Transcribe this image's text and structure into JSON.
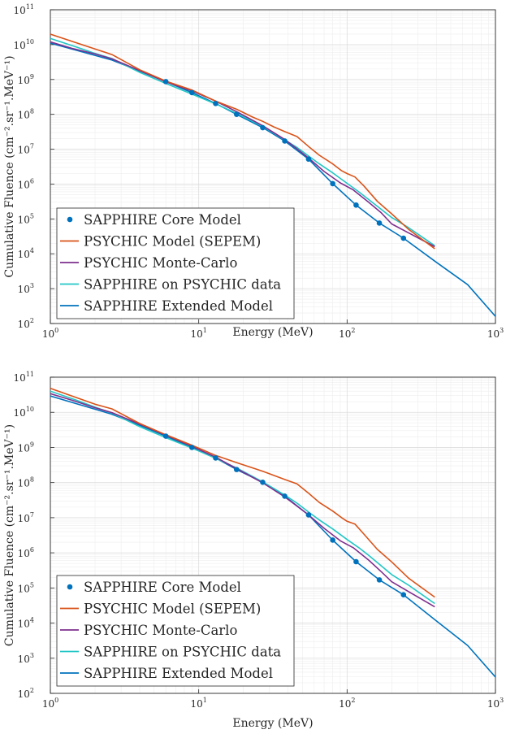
{
  "figure": {
    "colors": {
      "core": "#0072BD",
      "sepem": "#D95319",
      "montecarlo": "#7E2F8E",
      "psychicdata": "#22C6C6",
      "extended": "#0072BD",
      "grid": "#dddddd",
      "axis": "#262626"
    }
  },
  "chart_data": [
    {
      "type": "line",
      "panel": "top",
      "xscale": "log",
      "yscale": "log",
      "xlim": [
        1,
        1000
      ],
      "ylim": [
        100,
        100000000000
      ],
      "xlabel": "Energy (MeV)",
      "ylabel": "Cumulative Fluence (cm⁻².sr⁻¹.MeV⁻¹)",
      "xticks": [
        {
          "base": "10",
          "exp": "0",
          "v": 1
        },
        {
          "base": "10",
          "exp": "1",
          "v": 10
        },
        {
          "base": "10",
          "exp": "2",
          "v": 100
        },
        {
          "base": "10",
          "exp": "3",
          "v": 1000
        }
      ],
      "yticks": [
        {
          "base": "10",
          "exp": "2",
          "v": 100.0
        },
        {
          "base": "10",
          "exp": "3",
          "v": 1000.0
        },
        {
          "base": "10",
          "exp": "4",
          "v": 10000.0
        },
        {
          "base": "10",
          "exp": "5",
          "v": 100000.0
        },
        {
          "base": "10",
          "exp": "6",
          "v": 1000000.0
        },
        {
          "base": "10",
          "exp": "7",
          "v": 10000000.0
        },
        {
          "base": "10",
          "exp": "8",
          "v": 100000000.0
        },
        {
          "base": "10",
          "exp": "9",
          "v": 1000000000.0
        },
        {
          "base": "10",
          "exp": "10",
          "v": 10000000000.0
        },
        {
          "base": "10",
          "exp": "11",
          "v": 100000000000.0
        }
      ],
      "legend_position": "bottom-left",
      "series": [
        {
          "key": "sepem",
          "name": "PSYCHIC Model (SEPEM)",
          "style": "line",
          "x": [
            1,
            2,
            2.6,
            4,
            6,
            9,
            13,
            18,
            23,
            27,
            32,
            38,
            46,
            55,
            65,
            80,
            92,
            100,
            113,
            130,
            160,
            200,
            260,
            390
          ],
          "y": [
            20000000000.0,
            7500000000.0,
            5200000000.0,
            1900000000.0,
            900000000.0,
            500000000.0,
            240000000.0,
            140000000.0,
            84000000.0,
            63000000.0,
            44000000.0,
            32000000.0,
            23000000.0,
            12000000.0,
            6700000.0,
            3800000.0,
            2400000.0,
            2000000.0,
            1600000.0,
            880000.0,
            320000.0,
            140000.0,
            50000.0,
            14000.0
          ]
        },
        {
          "key": "montecarlo",
          "name": "PSYCHIC Monte-Carlo",
          "style": "line",
          "x": [
            1,
            1.4,
            2,
            2.6,
            4,
            6,
            9,
            13,
            18,
            27,
            38,
            45,
            55,
            70,
            90,
            110,
            140,
            170,
            200,
            390
          ],
          "y": [
            12000000000.0,
            7800000000.0,
            5400000000.0,
            3900000000.0,
            1800000000.0,
            860000000.0,
            470000000.0,
            240000000.0,
            120000000.0,
            47000000.0,
            19000000.0,
            11000000.0,
            5600000.0,
            2300000.0,
            1080000.0,
            680000.0,
            300000.0,
            150000.0,
            72000.0,
            16000.0
          ]
        },
        {
          "key": "psychicdata",
          "name": "SAPPHIRE on PSYCHIC data",
          "style": "line",
          "x": [
            1,
            1.5,
            2,
            2.6,
            4,
            6,
            9,
            13,
            18,
            27,
            38,
            46,
            55,
            65,
            80,
            100,
            120,
            140,
            200,
            260,
            390
          ],
          "y": [
            15000000000.0,
            8500000000.0,
            5600000000.0,
            4000000000.0,
            1600000000.0,
            770000000.0,
            380000000.0,
            200000000.0,
            107000000.0,
            45000000.0,
            18500000.0,
            11200000.0,
            6400000.0,
            3800000.0,
            2100000.0,
            1050000.0,
            600000.0,
            360000.0,
            110000.0,
            56000.0,
            17000.0
          ]
        },
        {
          "key": "extended",
          "name": "SAPPHIRE Extended Model",
          "style": "line",
          "x": [
            1,
            2.6,
            4,
            6,
            9,
            13,
            18,
            27,
            38,
            55,
            80,
            115,
            165,
            240,
            400,
            650,
            1000
          ],
          "y": [
            11000000000.0,
            3600000000.0,
            1750000000.0,
            870000000.0,
            420000000.0,
            205000000.0,
            100000000.0,
            41500000.0,
            17200000.0,
            5200000.0,
            1030000.0,
            250000.0,
            76000.0,
            28000.0,
            5700.0,
            1300.0,
            160.0
          ]
        },
        {
          "key": "core",
          "name": "SAPPHIRE Core Model",
          "style": "markers",
          "x": [
            6,
            9,
            13,
            18,
            27,
            38,
            55,
            80,
            115,
            165,
            240
          ],
          "y": [
            870000000.0,
            420000000.0,
            205000000.0,
            100000000.0,
            41500000.0,
            17200000.0,
            5200000.0,
            1030000.0,
            250000.0,
            76000.0,
            28000.0
          ]
        }
      ]
    },
    {
      "type": "line",
      "panel": "bottom",
      "xscale": "log",
      "yscale": "log",
      "xlim": [
        1,
        1000
      ],
      "ylim": [
        100,
        100000000000
      ],
      "xlabel": "Energy (MeV)",
      "ylabel": "Cumulative Fluence (cm⁻².sr⁻¹.MeV⁻¹)",
      "xticks": [
        {
          "base": "10",
          "exp": "0",
          "v": 1
        },
        {
          "base": "10",
          "exp": "1",
          "v": 10
        },
        {
          "base": "10",
          "exp": "2",
          "v": 100
        },
        {
          "base": "10",
          "exp": "3",
          "v": 1000
        }
      ],
      "yticks": [
        {
          "base": "10",
          "exp": "2",
          "v": 100.0
        },
        {
          "base": "10",
          "exp": "3",
          "v": 1000.0
        },
        {
          "base": "10",
          "exp": "4",
          "v": 10000.0
        },
        {
          "base": "10",
          "exp": "5",
          "v": 100000.0
        },
        {
          "base": "10",
          "exp": "6",
          "v": 1000000.0
        },
        {
          "base": "10",
          "exp": "7",
          "v": 10000000.0
        },
        {
          "base": "10",
          "exp": "8",
          "v": 100000000.0
        },
        {
          "base": "10",
          "exp": "9",
          "v": 1000000000.0
        },
        {
          "base": "10",
          "exp": "10",
          "v": 10000000000.0
        },
        {
          "base": "10",
          "exp": "11",
          "v": 100000000000.0
        }
      ],
      "legend_position": "bottom-left",
      "series": [
        {
          "key": "sepem",
          "name": "PSYCHIC Model (SEPEM)",
          "style": "line",
          "x": [
            1,
            2,
            2.6,
            4,
            6,
            9,
            13,
            18,
            27,
            38,
            46,
            55,
            65,
            80,
            92,
            100,
            113,
            130,
            160,
            200,
            260,
            390
          ],
          "y": [
            48000000000.0,
            17000000000.0,
            12500000000.0,
            4800000000.0,
            2300000000.0,
            1160000000.0,
            590000000.0,
            370000000.0,
            210000000.0,
            122000000.0,
            92000000.0,
            50000000.0,
            27000000.0,
            15500000.0,
            10000000.0,
            7900000.0,
            6600000.0,
            3400000.0,
            1250000.0,
            550000.0,
            190000.0,
            55000.0
          ]
        },
        {
          "key": "montecarlo",
          "name": "PSYCHIC Monte-Carlo",
          "style": "line",
          "x": [
            1,
            1.4,
            2,
            2.6,
            4,
            6,
            9,
            13,
            18,
            27,
            38,
            45,
            55,
            70,
            90,
            110,
            140,
            170,
            200,
            390
          ],
          "y": [
            34000000000.0,
            22000000000.0,
            13500000000.0,
            9800000000.0,
            4600000000.0,
            2250000000.0,
            1080000000.0,
            530000000.0,
            250000000.0,
            98000000.0,
            39000000.0,
            23000000.0,
            12000000.0,
            5000000.0,
            2200000.0,
            1400000.0,
            620000.0,
            290000.0,
            150000.0,
            29000.0
          ]
        },
        {
          "key": "psychicdata",
          "name": "SAPPHIRE on PSYCHIC data",
          "style": "line",
          "x": [
            1,
            1.5,
            2,
            2.6,
            4,
            6,
            9,
            13,
            18,
            27,
            38,
            46,
            55,
            65,
            80,
            100,
            120,
            140,
            200,
            260,
            390
          ],
          "y": [
            40000000000.0,
            22000000000.0,
            14000000000.0,
            9500000000.0,
            3900000000.0,
            1900000000.0,
            960000000.0,
            490000000.0,
            260000000.0,
            105000000.0,
            44000000.0,
            26000000.0,
            14500000.0,
            8600000.0,
            4800000.0,
            2400000.0,
            1400000.0,
            850000.0,
            240000.0,
            120000.0,
            36000.0
          ]
        },
        {
          "key": "extended",
          "name": "SAPPHIRE Extended Model",
          "style": "line",
          "x": [
            1,
            2.6,
            4,
            6,
            9,
            13,
            18,
            27,
            38,
            55,
            80,
            115,
            165,
            240,
            400,
            650,
            1000
          ],
          "y": [
            29000000000.0,
            8800000000.0,
            4300000000.0,
            2100000000.0,
            1000000000.0,
            500000000.0,
            235000000.0,
            102000000.0,
            41000000.0,
            12000000.0,
            2300000.0,
            560000.0,
            170000.0,
            64000.0,
            11500.0,
            2300.0,
            290.0
          ]
        },
        {
          "key": "core",
          "name": "SAPPHIRE Core Model",
          "style": "markers",
          "x": [
            6,
            9,
            13,
            18,
            27,
            38,
            55,
            80,
            115,
            165,
            240
          ],
          "y": [
            2100000000.0,
            1000000000.0,
            500000000.0,
            235000000.0,
            102000000.0,
            41000000.0,
            12000000.0,
            2300000.0,
            560000.0,
            170000.0,
            64000.0
          ]
        }
      ]
    }
  ],
  "legend": [
    {
      "key": "core",
      "label": "SAPPHIRE Core Model",
      "kind": "marker"
    },
    {
      "key": "sepem",
      "label": "PSYCHIC Model (SEPEM)",
      "kind": "line"
    },
    {
      "key": "montecarlo",
      "label": "PSYCHIC Monte-Carlo",
      "kind": "line"
    },
    {
      "key": "psychicdata",
      "label": "SAPPHIRE on PSYCHIC data",
      "kind": "line"
    },
    {
      "key": "extended",
      "label": "SAPPHIRE Extended Model",
      "kind": "line"
    }
  ]
}
